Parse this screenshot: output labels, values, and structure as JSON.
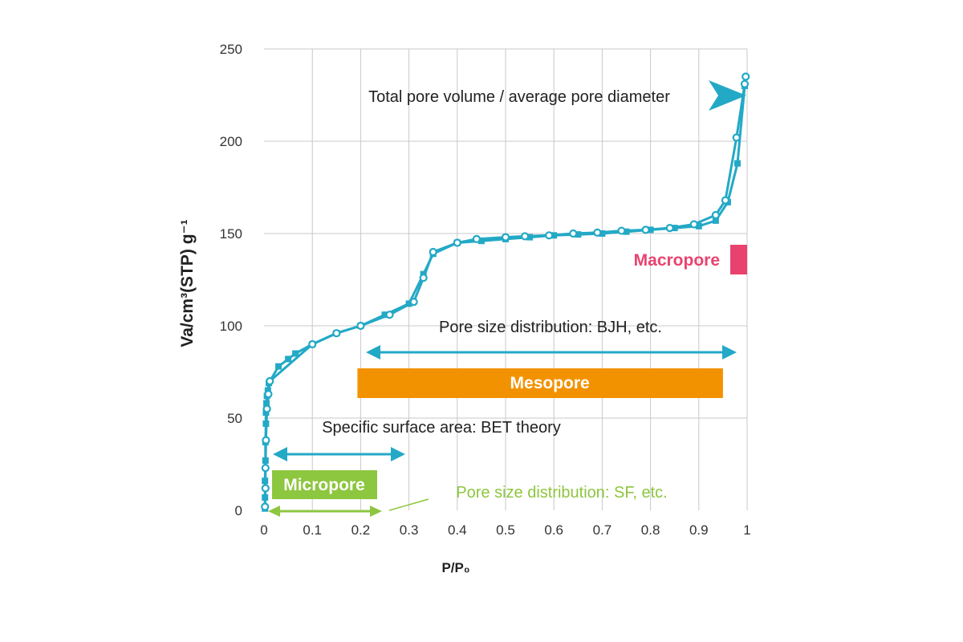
{
  "chart_data": {
    "type": "line",
    "xlabel": "P/P₀",
    "ylabel": "Va/cm³(STP) g⁻¹",
    "xlim": [
      0,
      1
    ],
    "ylim": [
      0,
      250
    ],
    "x_ticks": [
      "0",
      "0.1",
      "0.2",
      "0.3",
      "0.4",
      "0.5",
      "0.6",
      "0.7",
      "0.8",
      "0.9",
      "1"
    ],
    "y_ticks": [
      "0",
      "50",
      "100",
      "150",
      "200",
      "250"
    ],
    "grid": true,
    "series": [
      {
        "marker": "square",
        "x": [
          0.002,
          0.002,
          0.002,
          0.003,
          0.003,
          0.004,
          0.004,
          0.005,
          0.006,
          0.008,
          0.01,
          0.03,
          0.05,
          0.065,
          0.1,
          0.15,
          0.2,
          0.25,
          0.3,
          0.33,
          0.35,
          0.4,
          0.45,
          0.5,
          0.55,
          0.6,
          0.65,
          0.7,
          0.75,
          0.8,
          0.85,
          0.9,
          0.935,
          0.96,
          0.98,
          0.995
        ],
        "y": [
          1,
          7,
          16,
          27,
          37,
          47,
          53,
          58,
          62,
          65,
          69,
          78,
          82,
          85,
          90,
          96,
          100,
          106,
          112,
          128,
          139,
          145,
          146,
          147,
          148,
          149,
          149.5,
          150,
          151,
          152,
          153,
          154,
          157,
          167,
          188,
          230
        ]
      },
      {
        "marker": "circle",
        "x": [
          0.002,
          0.003,
          0.003,
          0.004,
          0.006,
          0.009,
          0.012,
          0.1,
          0.15,
          0.2,
          0.26,
          0.31,
          0.33,
          0.35,
          0.4,
          0.44,
          0.5,
          0.54,
          0.59,
          0.64,
          0.69,
          0.74,
          0.79,
          0.84,
          0.89,
          0.935,
          0.955,
          0.978,
          0.995,
          0.997
        ],
        "y": [
          2,
          12,
          23,
          38,
          55,
          63,
          70,
          90,
          96,
          100,
          106,
          113,
          126,
          140,
          145,
          147,
          148,
          148.5,
          149,
          150,
          150.5,
          151.5,
          152,
          153,
          155,
          160,
          168,
          202,
          231,
          235
        ]
      }
    ],
    "ranges": [
      {
        "name": "Micropore",
        "from": 0.0,
        "to": 0.25,
        "color": "#8dc63f"
      },
      {
        "name": "Mesopore",
        "from": 0.2,
        "to": 0.95,
        "color": "#f39200"
      },
      {
        "name": "Macropore",
        "from": 0.97,
        "to": 1.0,
        "color": "#e8436e"
      }
    ],
    "annotations": {
      "total_pore": "Total pore volume / average pore diameter",
      "bjh": "Pore size distribution: BJH, etc.",
      "bet": "Specific surface area: BET theory",
      "sf": "Pore size distribution: SF, etc."
    },
    "colors": {
      "series": "#23a9c6",
      "micropore": "#8dc63f",
      "mesopore": "#f39200",
      "macropore": "#e8436e",
      "grid": "#c8c8c8"
    }
  }
}
